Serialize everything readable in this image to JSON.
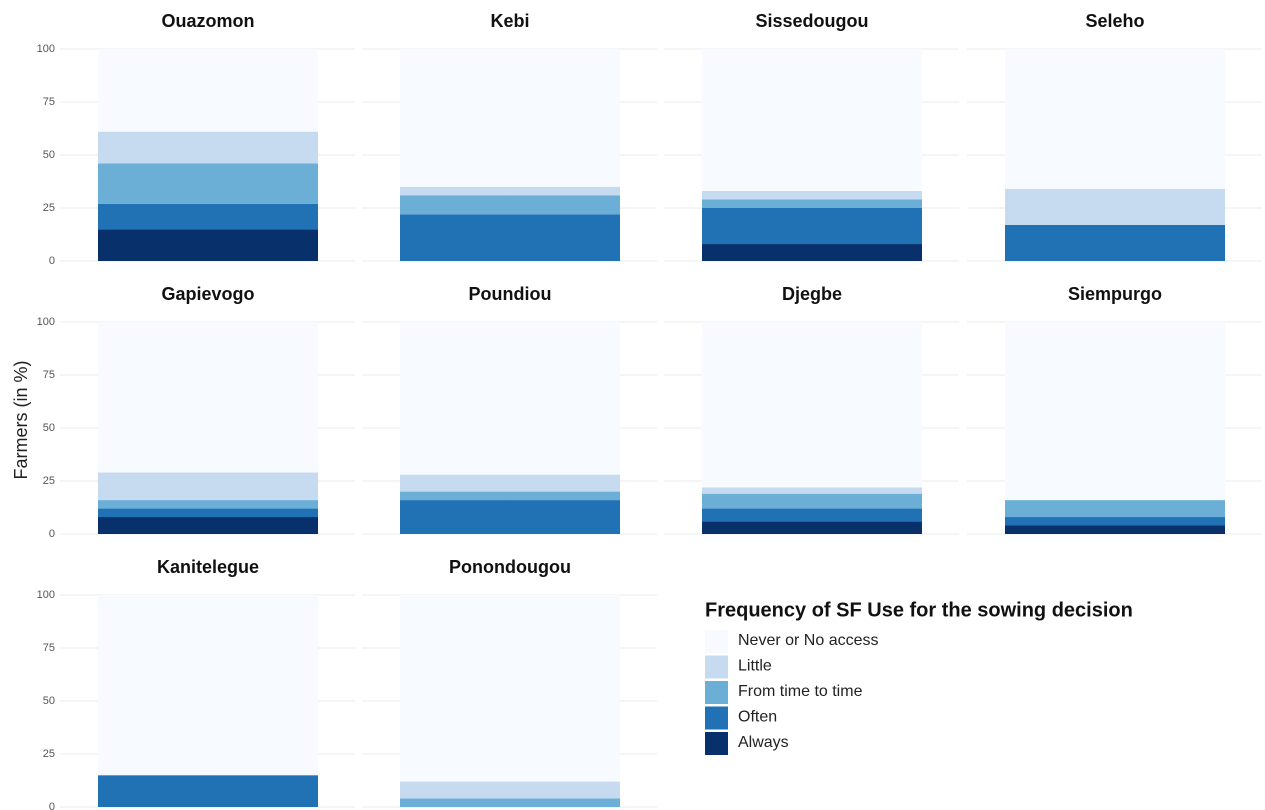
{
  "chart_data": {
    "type": "bar",
    "stacked": true,
    "ylabel": "Farmers (in %)",
    "legend_title": "Frequency of SF Use for the sowing decision",
    "categories": [
      "Ouazomon",
      "Kebi",
      "Sissedougou",
      "Seleho",
      "Gapievogo",
      "Poundiou",
      "Djegbe",
      "Siempurgo",
      "Kanitelegue",
      "Ponondougou"
    ],
    "series": [
      {
        "name": "Never or No access",
        "color": "#f7fbff",
        "values": [
          39,
          65,
          67,
          66,
          71,
          72,
          78,
          84,
          85,
          88
        ]
      },
      {
        "name": "Little",
        "color": "#c6dbef",
        "values": [
          15,
          4,
          4,
          17,
          13,
          8,
          3,
          0,
          0,
          8
        ]
      },
      {
        "name": "From time to time",
        "color": "#6baed6",
        "values": [
          19,
          9,
          4,
          0,
          4,
          4,
          7,
          8,
          0,
          4
        ]
      },
      {
        "name": "Often",
        "color": "#2171b5",
        "values": [
          12,
          22,
          17,
          17,
          4,
          16,
          6,
          4,
          15,
          0
        ]
      },
      {
        "name": "Always",
        "color": "#08306b",
        "values": [
          15,
          0,
          8,
          0,
          8,
          0,
          6,
          4,
          0,
          0
        ]
      }
    ],
    "ylim": [
      0,
      100
    ],
    "yticks": [
      0,
      25,
      50,
      75,
      100
    ],
    "grid": true
  }
}
